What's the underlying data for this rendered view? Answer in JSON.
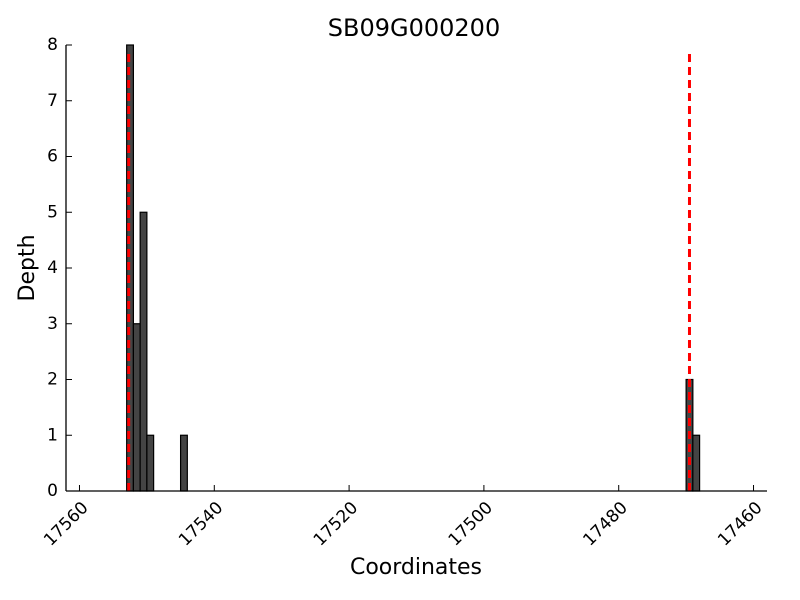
{
  "chart_data": {
    "type": "bar",
    "title": "SB09G000200",
    "xlabel": "Coordinates",
    "ylabel": "Depth",
    "x": [
      17552,
      17551,
      17550,
      17549,
      17544,
      17469,
      17468
    ],
    "values": [
      8,
      3,
      5,
      1,
      1,
      2,
      1
    ],
    "color": "#444444",
    "xlim": [
      17562,
      17458
    ],
    "ylim": [
      0,
      8
    ],
    "xticks": [
      17560,
      17540,
      17520,
      17500,
      17480,
      17460
    ],
    "yticks": [
      0,
      1,
      2,
      3,
      4,
      5,
      6,
      7,
      8
    ],
    "vlines": [
      17552.7,
      17469.5
    ],
    "vline_color": "#ff0000"
  }
}
